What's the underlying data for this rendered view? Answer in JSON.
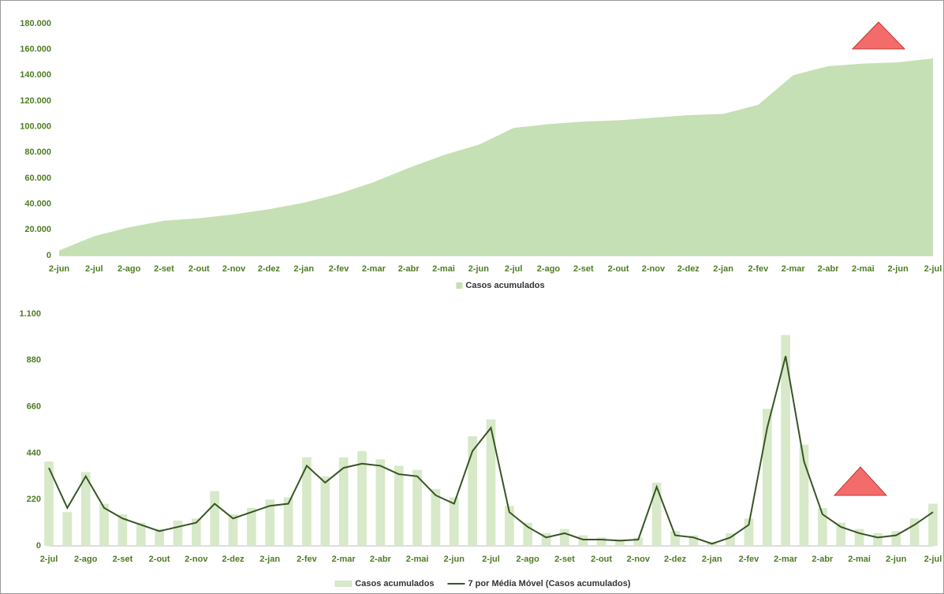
{
  "chart_data": [
    {
      "type": "area",
      "categories": [
        "2-jun",
        "2-jul",
        "2-ago",
        "2-set",
        "2-out",
        "2-nov",
        "2-dez",
        "2-jan",
        "2-fev",
        "2-mar",
        "2-abr",
        "2-mai",
        "2-jun",
        "2-jul",
        "2-ago",
        "2-set",
        "2-out",
        "2-nov",
        "2-dez",
        "2-jan",
        "2-fev",
        "2-mar",
        "2-abr",
        "2-mai",
        "2-jun",
        "2-jul"
      ],
      "series": [
        {
          "name": "Casos acumulados",
          "color": "#c5e0b4",
          "values": [
            4000,
            15000,
            22000,
            27000,
            29000,
            32000,
            36000,
            41000,
            48000,
            57000,
            68000,
            78000,
            86000,
            99000,
            102000,
            104000,
            105000,
            107000,
            109000,
            110000,
            117000,
            140000,
            147000,
            149000,
            150000,
            153000
          ]
        }
      ],
      "ylim": [
        0,
        180000
      ],
      "yticks": [
        0,
        {
          "value": 20000,
          "label": "20.000"
        },
        {
          "value": 40000,
          "label": "40.000"
        },
        {
          "value": 60000,
          "label": "60.000"
        },
        {
          "value": 80000,
          "label": "80.000"
        },
        {
          "value": 100000,
          "label": "100.000"
        },
        {
          "value": 120000,
          "label": "120.000"
        },
        {
          "value": 140000,
          "label": "140.000"
        },
        {
          "value": 160000,
          "label": "160.000"
        },
        {
          "value": 180000,
          "label": "180.000"
        }
      ],
      "grid": false
    },
    {
      "type": "combo",
      "categories": [
        "2-jul",
        null,
        "2-ago",
        null,
        "2-set",
        null,
        "2-out",
        null,
        "2-nov",
        null,
        "2-dez",
        null,
        "2-jan",
        null,
        "2-fev",
        null,
        "2-mar",
        null,
        "2-abr",
        null,
        "2-mai",
        null,
        "2-jun",
        null,
        "2-jul",
        null,
        "2-ago",
        null,
        "2-set",
        null,
        "2-out",
        null,
        "2-nov",
        null,
        "2-dez",
        null,
        "2-jan",
        null,
        "2-fev",
        null,
        "2-mar",
        null,
        "2-abr",
        null,
        "2-mai",
        null,
        "2-jun",
        null,
        "2-jul"
      ],
      "series": [
        {
          "name": "Casos acumulados",
          "type": "bar",
          "color": "#d7e9c8",
          "values": [
            400,
            160,
            350,
            200,
            150,
            110,
            80,
            120,
            130,
            260,
            150,
            180,
            220,
            230,
            420,
            330,
            420,
            450,
            410,
            380,
            360,
            270,
            230,
            520,
            600,
            190,
            110,
            60,
            80,
            50,
            40,
            30,
            40,
            300,
            70,
            50,
            20,
            60,
            130,
            650,
            1000,
            480,
            180,
            110,
            80,
            60,
            70,
            130,
            200
          ]
        },
        {
          "name": "7 por Média Móvel (Casos acumulados)",
          "type": "line",
          "color": "#375623",
          "values": [
            370,
            180,
            330,
            180,
            130,
            100,
            70,
            90,
            110,
            200,
            130,
            160,
            190,
            200,
            380,
            300,
            370,
            390,
            380,
            340,
            330,
            240,
            200,
            450,
            560,
            160,
            90,
            40,
            60,
            30,
            30,
            25,
            30,
            280,
            50,
            40,
            10,
            40,
            100,
            560,
            900,
            400,
            150,
            90,
            60,
            40,
            50,
            100,
            160
          ]
        }
      ],
      "ylim": [
        0,
        1100
      ],
      "yticks": [
        0,
        220,
        440,
        660,
        880,
        {
          "value": 1100,
          "label": "1.100"
        }
      ],
      "grid": false
    }
  ]
}
